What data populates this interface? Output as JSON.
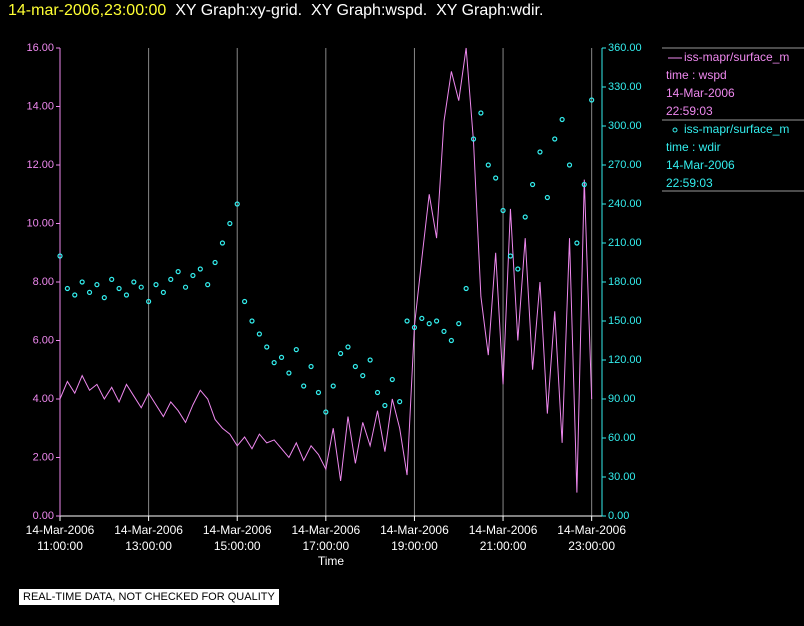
{
  "chart_data": {
    "type": "line-scatter",
    "title": "14-mar-2006,23:00:00",
    "subtitle": "XY Graph:xy-grid.  XY Graph:wspd.  XY Graph:wdir.",
    "xlabel": "Time",
    "footnote": "REAL-TIME DATA, NOT CHECKED FOR QUALITY",
    "x": [
      "2006-03-14T11:00",
      "2006-03-14T11:10",
      "2006-03-14T11:20",
      "2006-03-14T11:30",
      "2006-03-14T11:40",
      "2006-03-14T11:50",
      "2006-03-14T12:00",
      "2006-03-14T12:10",
      "2006-03-14T12:20",
      "2006-03-14T12:30",
      "2006-03-14T12:40",
      "2006-03-14T12:50",
      "2006-03-14T13:00",
      "2006-03-14T13:10",
      "2006-03-14T13:20",
      "2006-03-14T13:30",
      "2006-03-14T13:40",
      "2006-03-14T13:50",
      "2006-03-14T14:00",
      "2006-03-14T14:10",
      "2006-03-14T14:20",
      "2006-03-14T14:30",
      "2006-03-14T14:40",
      "2006-03-14T14:50",
      "2006-03-14T15:00",
      "2006-03-14T15:10",
      "2006-03-14T15:20",
      "2006-03-14T15:30",
      "2006-03-14T15:40",
      "2006-03-14T15:50",
      "2006-03-14T16:00",
      "2006-03-14T16:10",
      "2006-03-14T16:20",
      "2006-03-14T16:30",
      "2006-03-14T16:40",
      "2006-03-14T16:50",
      "2006-03-14T17:00",
      "2006-03-14T17:10",
      "2006-03-14T17:20",
      "2006-03-14T17:30",
      "2006-03-14T17:40",
      "2006-03-14T17:50",
      "2006-03-14T18:00",
      "2006-03-14T18:10",
      "2006-03-14T18:20",
      "2006-03-14T18:30",
      "2006-03-14T18:40",
      "2006-03-14T18:50",
      "2006-03-14T19:00",
      "2006-03-14T19:10",
      "2006-03-14T19:20",
      "2006-03-14T19:30",
      "2006-03-14T19:40",
      "2006-03-14T19:50",
      "2006-03-14T20:00",
      "2006-03-14T20:10",
      "2006-03-14T20:20",
      "2006-03-14T20:30",
      "2006-03-14T20:40",
      "2006-03-14T20:50",
      "2006-03-14T21:00",
      "2006-03-14T21:10",
      "2006-03-14T21:20",
      "2006-03-14T21:30",
      "2006-03-14T21:40",
      "2006-03-14T21:50",
      "2006-03-14T22:00",
      "2006-03-14T22:10",
      "2006-03-14T22:20",
      "2006-03-14T22:30",
      "2006-03-14T22:40",
      "2006-03-14T22:50",
      "2006-03-14T23:00"
    ],
    "xlim": [
      "2006-03-14T11:00",
      "2006-03-14T23:14"
    ],
    "xticks": [
      {
        "value": "2006-03-14T11:00",
        "label": "14-Mar-2006 11:00:00"
      },
      {
        "value": "2006-03-14T13:00",
        "label": "14-Mar-2006 13:00:00"
      },
      {
        "value": "2006-03-14T15:00",
        "label": "14-Mar-2006 15:00:00"
      },
      {
        "value": "2006-03-14T17:00",
        "label": "14-Mar-2006 17:00:00"
      },
      {
        "value": "2006-03-14T19:00",
        "label": "14-Mar-2006 19:00:00"
      },
      {
        "value": "2006-03-14T21:00",
        "label": "14-Mar-2006 21:00:00"
      },
      {
        "value": "2006-03-14T23:00",
        "label": "14-Mar-2006 23:00:00"
      }
    ],
    "grid": true,
    "ylim": [
      0,
      16
    ],
    "yticks": [
      {
        "value": 0,
        "label": "0.00"
      },
      {
        "value": 2,
        "label": "2.00"
      },
      {
        "value": 4,
        "label": "4.00"
      },
      {
        "value": 6,
        "label": "6.00"
      },
      {
        "value": 8,
        "label": "8.00"
      },
      {
        "value": 10,
        "label": "10.00"
      },
      {
        "value": 12,
        "label": "12.00"
      },
      {
        "value": 14,
        "label": "14.00"
      },
      {
        "value": 16,
        "label": "16.00"
      }
    ],
    "y2lim": [
      0,
      360
    ],
    "y2ticks": [
      {
        "value": 0,
        "label": "0.00"
      },
      {
        "value": 30,
        "label": "30.00"
      },
      {
        "value": 60,
        "label": "60.00"
      },
      {
        "value": 90,
        "label": "90.00"
      },
      {
        "value": 120,
        "label": "120.00"
      },
      {
        "value": 150,
        "label": "150.00"
      },
      {
        "value": 180,
        "label": "180.00"
      },
      {
        "value": 210,
        "label": "210.00"
      },
      {
        "value": 240,
        "label": "240.00"
      },
      {
        "value": 270,
        "label": "270.00"
      },
      {
        "value": 300,
        "label": "300.00"
      },
      {
        "value": 330,
        "label": "330.00"
      },
      {
        "value": 360,
        "label": "360.00"
      }
    ],
    "series": [
      {
        "name": "iss-mapr/surface_m",
        "legend_lines": [
          "time : wspd",
          "14-Mar-2006",
          "22:59:03"
        ],
        "kind": "line",
        "axis": "y",
        "color": "#ee88ee",
        "values": [
          4.0,
          4.6,
          4.2,
          4.8,
          4.3,
          4.5,
          4.0,
          4.4,
          3.9,
          4.5,
          4.1,
          3.7,
          4.2,
          3.8,
          3.4,
          3.9,
          3.6,
          3.2,
          3.8,
          4.3,
          4.0,
          3.3,
          3.0,
          2.8,
          2.4,
          2.7,
          2.3,
          2.8,
          2.5,
          2.6,
          2.3,
          2.0,
          2.5,
          1.9,
          2.4,
          2.1,
          1.6,
          3.0,
          1.2,
          3.4,
          1.8,
          3.2,
          2.4,
          3.6,
          2.2,
          4.0,
          3.0,
          1.4,
          6.5,
          8.8,
          11.0,
          9.5,
          13.5,
          15.2,
          14.2,
          16.0,
          12.8,
          7.5,
          5.5,
          9.0,
          4.5,
          10.5,
          6.0,
          9.5,
          5.0,
          8.0,
          3.5,
          7.0,
          2.5,
          9.5,
          0.8,
          11.5,
          4.0
        ]
      },
      {
        "name": "iss-mapr/surface_m",
        "legend_lines": [
          "time : wdir",
          "14-Mar-2006",
          "22:59:03"
        ],
        "kind": "scatter",
        "axis": "y2",
        "color": "#33eeee",
        "values": [
          200,
          175,
          170,
          180,
          172,
          178,
          168,
          182,
          175,
          170,
          180,
          176,
          165,
          178,
          172,
          182,
          188,
          176,
          185,
          190,
          178,
          195,
          210,
          225,
          240,
          165,
          150,
          140,
          130,
          118,
          122,
          110,
          128,
          100,
          115,
          95,
          80,
          100,
          125,
          130,
          115,
          108,
          120,
          95,
          85,
          105,
          88,
          150,
          145,
          152,
          148,
          150,
          142,
          135,
          148,
          175,
          290,
          310,
          270,
          260,
          235,
          200,
          190,
          230,
          255,
          280,
          245,
          290,
          305,
          270,
          210,
          255,
          320
        ]
      }
    ]
  }
}
